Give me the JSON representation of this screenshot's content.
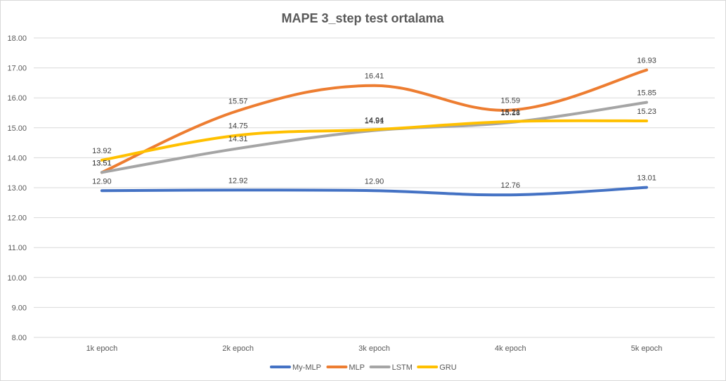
{
  "chart_data": {
    "type": "line",
    "title": "MAPE 3_step test ortalama",
    "xlabel": "",
    "ylabel": "",
    "categories": [
      "1k epoch",
      "2k epoch",
      "3k epoch",
      "4k epoch",
      "5k epoch"
    ],
    "ylim": [
      8.0,
      18.0
    ],
    "yticks": [
      "8.00",
      "9.00",
      "10.00",
      "11.00",
      "12.00",
      "13.00",
      "14.00",
      "15.00",
      "16.00",
      "17.00",
      "18.00"
    ],
    "grid": true,
    "legend_position": "bottom",
    "series": [
      {
        "name": "My-MLP",
        "color": "#4472c4",
        "values": [
          12.9,
          12.92,
          12.9,
          12.76,
          13.01
        ],
        "labels": [
          "12.90",
          "12.92",
          "12.90",
          "12.76",
          "13.01"
        ]
      },
      {
        "name": "MLP",
        "color": "#ed7d31",
        "values": [
          13.51,
          15.57,
          16.41,
          15.59,
          16.93
        ],
        "labels": [
          "13.51",
          "15.57",
          "16.41",
          "15.59",
          "16.93"
        ]
      },
      {
        "name": "LSTM",
        "color": "#a5a5a5",
        "values": [
          13.51,
          14.31,
          14.91,
          15.18,
          15.85
        ],
        "labels": [
          "13.51",
          "14.31",
          "14.91",
          "15.18",
          "15.85"
        ]
      },
      {
        "name": "GRU",
        "color": "#ffc000",
        "values": [
          13.92,
          14.75,
          14.94,
          15.21,
          15.23
        ],
        "labels": [
          "13.92",
          "14.75",
          "14.94",
          "15.21",
          "15.23"
        ]
      }
    ]
  }
}
